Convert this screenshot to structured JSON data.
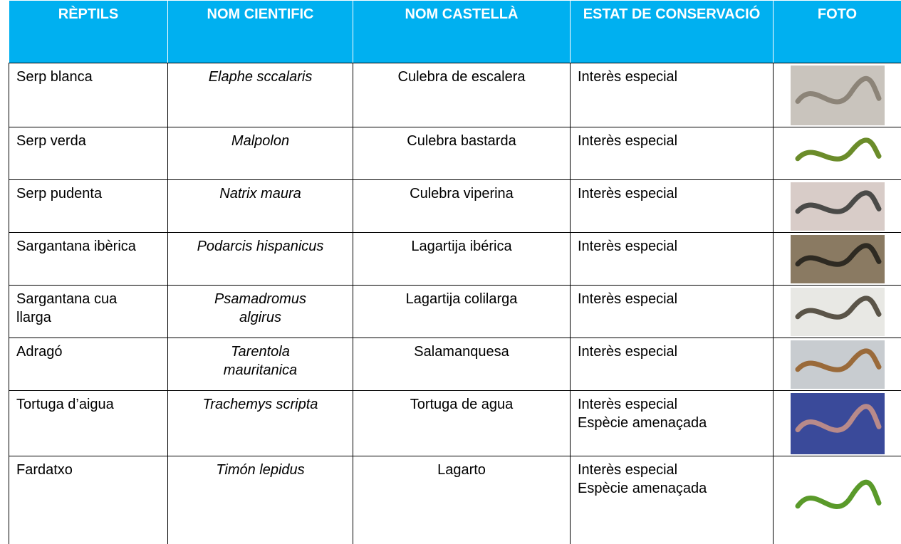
{
  "table": {
    "header": [
      "RÈPTILS",
      "NOM CIENTIFIC",
      "NOM CASTELLÀ",
      "ESTAT DE CONSERVACIÓ",
      "FOTO"
    ],
    "rows": [
      [
        "Serp blanca",
        "Elaphe sccalaris",
        "Culebra de escalera",
        [
          "Interès especial"
        ]
      ],
      [
        "Serp verda",
        "Malpolon",
        "Culebra bastarda",
        [
          "Interès especial"
        ]
      ],
      [
        "Serp pudenta",
        "Natrix maura",
        "Culebra viperina",
        [
          "Interès especial"
        ]
      ],
      [
        "Sargantana ibèrica",
        "Podarcis hispanicus",
        "Lagartija ibérica",
        [
          "Interès especial"
        ]
      ],
      [
        "Sargantana cua llarga",
        "Psamadromus algirus",
        "Lagartija colilarga",
        [
          "Interès especial"
        ]
      ],
      [
        "Adragó",
        "Tarentola mauritanica",
        "Salamanquesa",
        [
          "Interès especial"
        ]
      ],
      [
        "Tortuga d’aigua",
        "Trachemys scripta",
        "Tortuga de agua",
        [
          "Interès especial",
          "Espècie amenaçada"
        ]
      ],
      [
        "Fardatxo",
        "Timón lepidus",
        "Lagarto",
        [
          "Interès especial",
          "Espècie amenaçada"
        ]
      ]
    ]
  }
}
